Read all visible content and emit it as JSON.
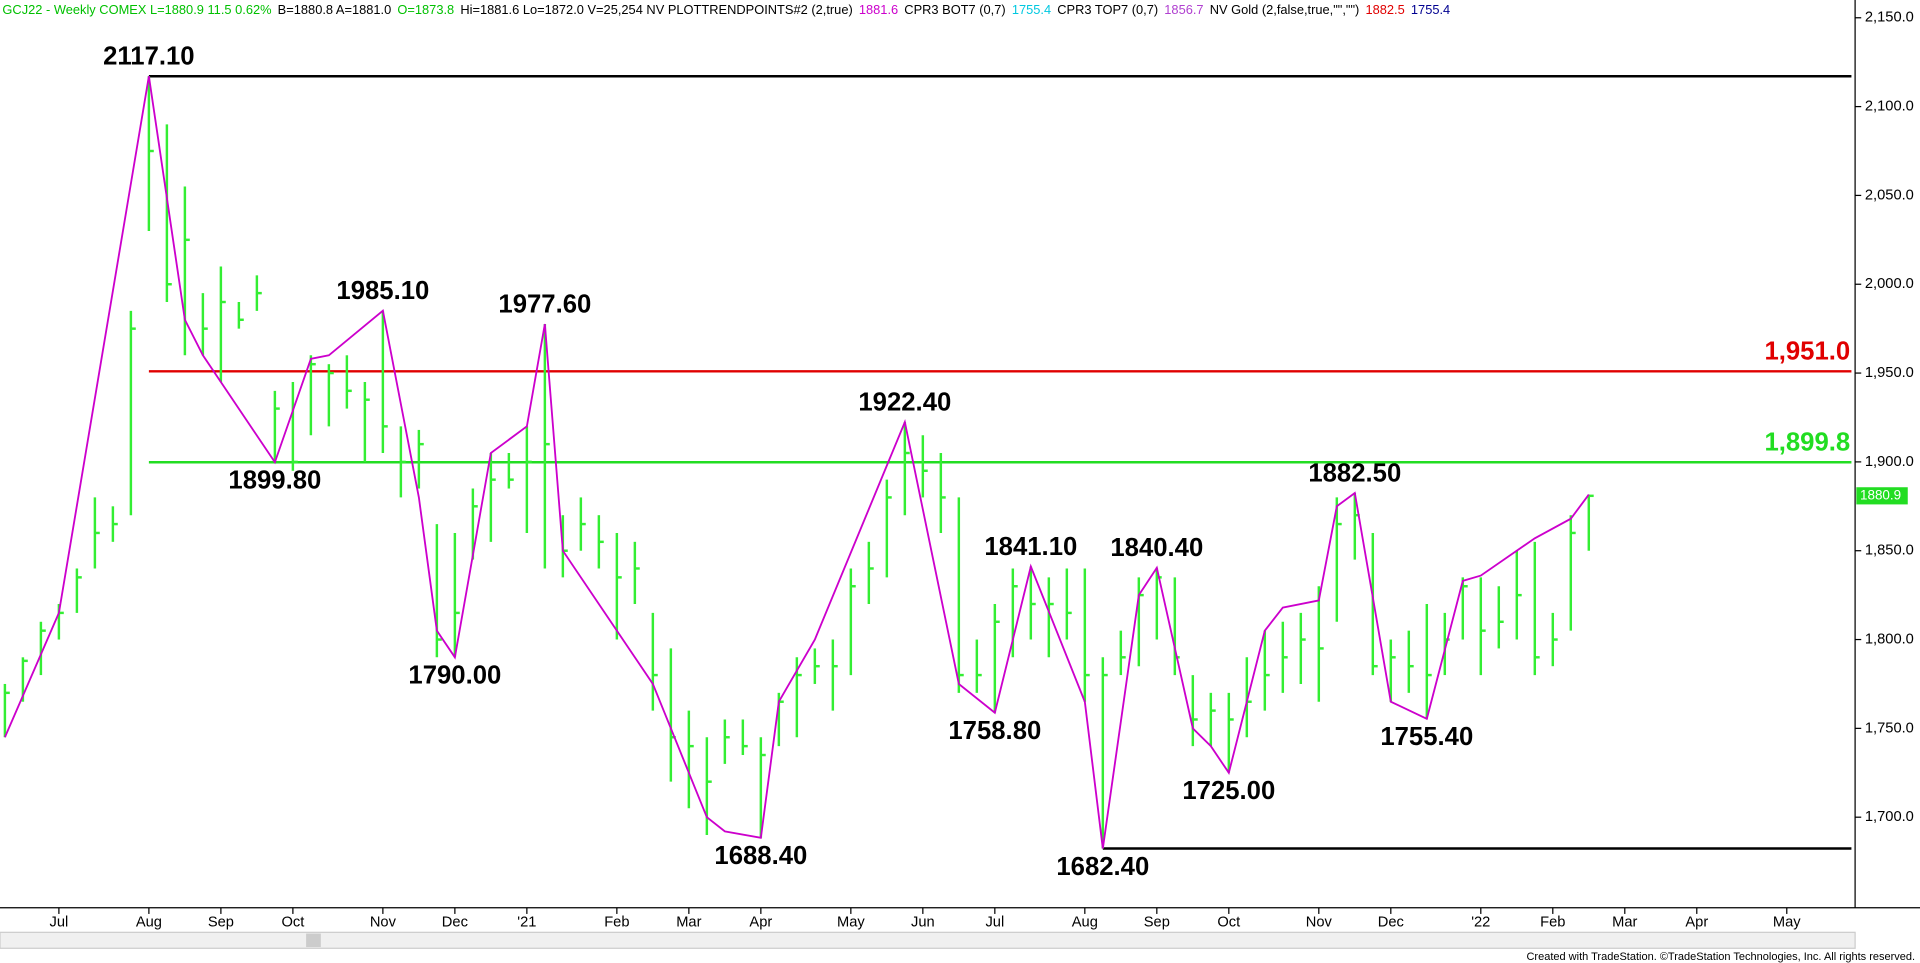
{
  "chart_data": {
    "type": "ohlc",
    "header": [
      {
        "text": "GCJ22 - Weekly COMEX L=1880.9 11.5 0.62%",
        "color": "#00c000"
      },
      {
        "text": "B=1880.8 A=1881.0",
        "color": "#000000"
      },
      {
        "text": "O=1873.8",
        "color": "#00c000"
      },
      {
        "text": "Hi=1881.6 Lo=1872.0 V=25,254 NV PLOTTRENDPOINTS#2 (2,true)",
        "color": "#000000"
      },
      {
        "text": "1881.6",
        "color": "#cc00cc"
      },
      {
        "text": "CPR3 BOT7 (0,7)",
        "color": "#000000"
      },
      {
        "text": "1755.4",
        "color": "#00c8e0"
      },
      {
        "text": "CPR3 TOP7 (0,7)",
        "color": "#000000"
      },
      {
        "text": "1856.7",
        "color": "#b040d0"
      },
      {
        "text": "NV Gold (2,false,true,\"\",\"\")",
        "color": "#000000"
      },
      {
        "text": "1882.5",
        "color": "#e00000"
      },
      {
        "text": "1755.4",
        "color": "#000090"
      }
    ],
    "footer": "Created with TradeStation. ©TradeStation Technologies, Inc. All rights reserved.",
    "bar_color": "#33ee33",
    "trend_color": "#cc00cc",
    "xlim": [
      0,
      103
    ],
    "ylim": [
      1649,
      2160
    ],
    "xticks": [
      {
        "value": 3,
        "label": "Jul"
      },
      {
        "value": 8,
        "label": "Aug"
      },
      {
        "value": 12,
        "label": "Sep"
      },
      {
        "value": 16,
        "label": "Oct"
      },
      {
        "value": 21,
        "label": "Nov"
      },
      {
        "value": 25,
        "label": "Dec"
      },
      {
        "value": 29,
        "label": "'21"
      },
      {
        "value": 34,
        "label": "Feb"
      },
      {
        "value": 38,
        "label": "Mar"
      },
      {
        "value": 42,
        "label": "Apr"
      },
      {
        "value": 47,
        "label": "May"
      },
      {
        "value": 51,
        "label": "Jun"
      },
      {
        "value": 55,
        "label": "Jul"
      },
      {
        "value": 60,
        "label": "Aug"
      },
      {
        "value": 64,
        "label": "Sep"
      },
      {
        "value": 68,
        "label": "Oct"
      },
      {
        "value": 73,
        "label": "Nov"
      },
      {
        "value": 77,
        "label": "Dec"
      },
      {
        "value": 82,
        "label": "'22"
      },
      {
        "value": 86,
        "label": "Feb"
      },
      {
        "value": 90,
        "label": "Mar"
      },
      {
        "value": 94,
        "label": "Apr"
      },
      {
        "value": 99,
        "label": "May"
      }
    ],
    "yticks": [
      {
        "value": 1700,
        "label": "1,700.0"
      },
      {
        "value": 1750,
        "label": "1,750.0"
      },
      {
        "value": 1800,
        "label": "1,800.0"
      },
      {
        "value": 1850,
        "label": "1,850.0"
      },
      {
        "value": 1900,
        "label": "1,900.0"
      },
      {
        "value": 1950,
        "label": "1,950.0"
      },
      {
        "value": 2000,
        "label": "2,000.0"
      },
      {
        "value": 2050,
        "label": "2,050.0"
      },
      {
        "value": 2100,
        "label": "2,100.0"
      },
      {
        "value": 2150,
        "label": "2,150.0"
      }
    ],
    "bars": {
      "high": [
        1775,
        1790,
        1810,
        1820,
        1840,
        1880,
        1875,
        1985,
        2117.1,
        2090,
        2055,
        1995,
        2010,
        1990,
        2005,
        1940,
        1945,
        1960,
        1955,
        1960,
        1945,
        1985.1,
        1920,
        1918,
        1865,
        1860,
        1885,
        1905,
        1905,
        1920,
        1977.6,
        1870,
        1880,
        1870,
        1860,
        1855,
        1815,
        1795,
        1760,
        1745,
        1755,
        1755,
        1745,
        1770,
        1790,
        1795,
        1800,
        1840,
        1855,
        1890,
        1922.4,
        1915,
        1905,
        1880,
        1800,
        1820,
        1840,
        1841.1,
        1835,
        1840,
        1840,
        1790,
        1805,
        1835,
        1840.4,
        1835,
        1780,
        1770,
        1770,
        1790,
        1805,
        1810,
        1815,
        1830,
        1880,
        1882.5,
        1860,
        1800,
        1805,
        1820,
        1815,
        1835,
        1835,
        1830,
        1850,
        1855,
        1815,
        1870,
        1881.6
      ],
      "low": [
        1745,
        1765,
        1780,
        1800,
        1815,
        1840,
        1855,
        1870,
        2030,
        1990,
        1960,
        1960,
        1945,
        1975,
        1985,
        1899.8,
        1895,
        1915,
        1920,
        1930,
        1900,
        1905,
        1880,
        1885,
        1790,
        1790,
        1845,
        1855,
        1885,
        1860,
        1840,
        1835,
        1850,
        1840,
        1800,
        1820,
        1760,
        1720,
        1705,
        1690,
        1730,
        1735,
        1688.4,
        1740,
        1745,
        1775,
        1760,
        1780,
        1820,
        1835,
        1870,
        1880,
        1860,
        1770,
        1770,
        1758.8,
        1790,
        1800,
        1790,
        1800,
        1765,
        1682.4,
        1780,
        1785,
        1800,
        1780,
        1740,
        1740,
        1725,
        1745,
        1760,
        1770,
        1775,
        1765,
        1810,
        1845,
        1780,
        1765,
        1770,
        1755.4,
        1780,
        1800,
        1780,
        1795,
        1800,
        1780,
        1785,
        1805,
        1850
      ],
      "close": [
        1770,
        1788,
        1805,
        1815,
        1835,
        1860,
        1865,
        1975,
        2075,
        2000,
        2025,
        1975,
        1990,
        1980,
        1995,
        1930,
        1900,
        1955,
        1950,
        1940,
        1935,
        1920,
        1900,
        1910,
        1800,
        1815,
        1875,
        1890,
        1890,
        1900,
        1910,
        1850,
        1865,
        1855,
        1835,
        1840,
        1780,
        1745,
        1740,
        1720,
        1745,
        1740,
        1735,
        1765,
        1780,
        1785,
        1785,
        1830,
        1840,
        1880,
        1905,
        1895,
        1880,
        1780,
        1780,
        1810,
        1830,
        1820,
        1820,
        1815,
        1780,
        1780,
        1790,
        1825,
        1835,
        1790,
        1755,
        1760,
        1755,
        1765,
        1780,
        1790,
        1800,
        1795,
        1865,
        1870,
        1785,
        1790,
        1785,
        1780,
        1800,
        1830,
        1805,
        1810,
        1825,
        1790,
        1800,
        1860,
        1880.9
      ]
    },
    "trend": {
      "x": [
        0,
        3,
        8,
        10,
        11,
        15,
        17,
        18,
        21,
        23,
        24,
        25,
        27,
        29,
        30,
        31,
        36,
        39,
        40,
        42,
        43,
        45,
        50,
        53,
        55,
        57,
        60,
        61,
        63,
        64,
        66,
        67,
        68,
        70,
        71,
        73,
        74,
        75,
        77,
        79,
        81,
        82,
        85,
        87,
        88
      ],
      "values": [
        1745,
        1815,
        2117.1,
        1980,
        1960,
        1899.8,
        1958,
        1960,
        1985.1,
        1880,
        1805,
        1790,
        1905,
        1920,
        1977.6,
        1850,
        1775,
        1700,
        1692,
        1688.4,
        1765,
        1800,
        1922.4,
        1775,
        1758.8,
        1841.1,
        1765,
        1682.4,
        1825,
        1840.4,
        1750,
        1740,
        1725,
        1805,
        1818,
        1822,
        1875,
        1882.5,
        1765,
        1755.4,
        1833,
        1836,
        1857,
        1868,
        1881.6
      ]
    },
    "pivots": [
      {
        "x": 8,
        "value": 2117.1,
        "label": "2117.10"
      },
      {
        "x": 15,
        "value": 1899.8,
        "label": "1899.80"
      },
      {
        "x": 21,
        "value": 1985.1,
        "label": "1985.10"
      },
      {
        "x": 25,
        "value": 1790,
        "label": "1790.00"
      },
      {
        "x": 30,
        "value": 1977.6,
        "label": "1977.60"
      },
      {
        "x": 42,
        "value": 1688.4,
        "label": "1688.40"
      },
      {
        "x": 50,
        "value": 1922.4,
        "label": "1922.40"
      },
      {
        "x": 55,
        "value": 1758.8,
        "label": "1758.80"
      },
      {
        "x": 57,
        "value": 1841.1,
        "label": "1841.10"
      },
      {
        "x": 61,
        "value": 1682.4,
        "label": "1682.40"
      },
      {
        "x": 64,
        "value": 1840.4,
        "label": "1840.40"
      },
      {
        "x": 68,
        "value": 1725,
        "label": "1725.00"
      },
      {
        "x": 75,
        "value": 1882.5,
        "label": "1882.50"
      },
      {
        "x": 79,
        "value": 1755.4,
        "label": "1755.40"
      }
    ],
    "levels": [
      {
        "value": 2117.1,
        "start": 8,
        "color": "#000000"
      },
      {
        "value": 1951.0,
        "label": "1,951.0",
        "start": 8,
        "color": "#e00000"
      },
      {
        "value": 1899.8,
        "label": "1,899.8",
        "start": 8,
        "color": "#22dd22"
      },
      {
        "value": 1682.4,
        "start": 61,
        "color": "#000000"
      }
    ],
    "last_price": 1880.9
  }
}
